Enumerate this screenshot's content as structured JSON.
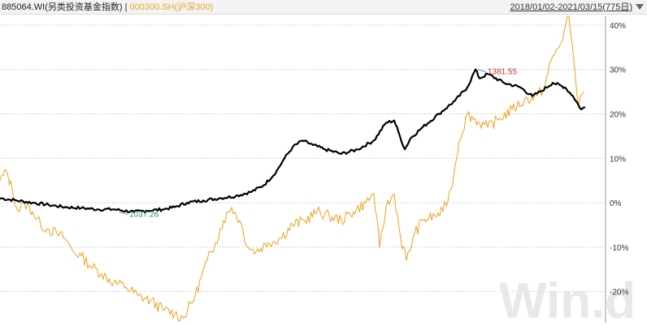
{
  "header": {
    "series1_label": "885064.WI(另类投资基金指数)",
    "separator": " | ",
    "series2_label": "000300.SH(沪深300)",
    "date_range": "2018/01/02-2021/03/15(775日)"
  },
  "watermark": "Win.d",
  "colors": {
    "series1": "#000000",
    "series2": "#f0a020",
    "max_label": "#c0392b",
    "min_label": "#2e8b57",
    "grid": "#bbbbbb"
  },
  "chart_data": {
    "type": "line",
    "x_start": "2018/01/02",
    "x_end": "2021/03/15",
    "trading_days": 775,
    "ylim": [
      -27,
      42
    ],
    "yticks": [
      40,
      30,
      20,
      10,
      0,
      -10,
      -20
    ],
    "ytick_labels": [
      "40%",
      "30%",
      "20%",
      "10%",
      "0%",
      "-10%",
      "-20%"
    ],
    "grid": true,
    "series": [
      {
        "key": "885064.WI",
        "points": [
          [
            0,
            1
          ],
          [
            20,
            0.5
          ],
          [
            40,
            0
          ],
          [
            60,
            -0.5
          ],
          [
            80,
            -1
          ],
          [
            100,
            -1.2
          ],
          [
            120,
            -1.5
          ],
          [
            140,
            -1.5
          ],
          [
            165,
            -2.1
          ],
          [
            180,
            -1.8
          ],
          [
            200,
            -1.5
          ],
          [
            215,
            -1
          ],
          [
            230,
            0
          ],
          [
            250,
            0.5
          ],
          [
            270,
            1
          ],
          [
            290,
            1.5
          ],
          [
            310,
            2.5
          ],
          [
            325,
            4
          ],
          [
            340,
            7
          ],
          [
            350,
            10
          ],
          [
            360,
            12.5
          ],
          [
            372,
            14
          ],
          [
            385,
            13
          ],
          [
            400,
            12
          ],
          [
            420,
            11
          ],
          [
            440,
            12
          ],
          [
            460,
            14
          ],
          [
            475,
            18
          ],
          [
            485,
            18.5
          ],
          [
            492,
            15
          ],
          [
            498,
            12
          ],
          [
            505,
            14.5
          ],
          [
            520,
            17
          ],
          [
            540,
            20
          ],
          [
            560,
            23
          ],
          [
            575,
            26
          ],
          [
            585,
            30
          ],
          [
            590,
            28
          ],
          [
            600,
            29
          ],
          [
            620,
            27
          ],
          [
            640,
            26
          ],
          [
            655,
            24
          ],
          [
            665,
            25
          ],
          [
            680,
            27
          ],
          [
            695,
            26
          ],
          [
            705,
            24
          ],
          [
            715,
            21
          ],
          [
            720,
            21.5
          ]
        ]
      },
      {
        "key": "000300.SH",
        "points": [
          [
            0,
            5
          ],
          [
            8,
            7
          ],
          [
            15,
            3
          ],
          [
            22,
            -2
          ],
          [
            30,
            0
          ],
          [
            40,
            -2
          ],
          [
            50,
            -5
          ],
          [
            60,
            -6
          ],
          [
            70,
            -7
          ],
          [
            80,
            -8
          ],
          [
            90,
            -11
          ],
          [
            100,
            -12
          ],
          [
            110,
            -14
          ],
          [
            125,
            -16
          ],
          [
            140,
            -18
          ],
          [
            155,
            -19
          ],
          [
            170,
            -21
          ],
          [
            185,
            -22
          ],
          [
            200,
            -24
          ],
          [
            215,
            -25
          ],
          [
            225,
            -26
          ],
          [
            240,
            -21
          ],
          [
            255,
            -13
          ],
          [
            265,
            -9
          ],
          [
            275,
            -4
          ],
          [
            285,
            -1
          ],
          [
            295,
            -4
          ],
          [
            305,
            -10
          ],
          [
            315,
            -11
          ],
          [
            330,
            -9
          ],
          [
            345,
            -8
          ],
          [
            360,
            -5
          ],
          [
            375,
            -4
          ],
          [
            390,
            -2
          ],
          [
            405,
            -3
          ],
          [
            420,
            -4
          ],
          [
            435,
            -2
          ],
          [
            450,
            0
          ],
          [
            460,
            2
          ],
          [
            467,
            -10
          ],
          [
            475,
            -1
          ],
          [
            485,
            2
          ],
          [
            493,
            -8
          ],
          [
            500,
            -13
          ],
          [
            510,
            -7
          ],
          [
            520,
            -4
          ],
          [
            535,
            -3
          ],
          [
            545,
            -2
          ],
          [
            555,
            3
          ],
          [
            565,
            14
          ],
          [
            575,
            20
          ],
          [
            590,
            18
          ],
          [
            600,
            17
          ],
          [
            615,
            19
          ],
          [
            630,
            21
          ],
          [
            645,
            23
          ],
          [
            660,
            24
          ],
          [
            670,
            26
          ],
          [
            678,
            32
          ],
          [
            690,
            36
          ],
          [
            700,
            42
          ],
          [
            706,
            32
          ],
          [
            712,
            22
          ],
          [
            718,
            25
          ]
        ]
      }
    ],
    "annotations": [
      {
        "kind": "max",
        "series": "885064.WI",
        "at": [
          586,
          30
        ],
        "text": "1381.55"
      },
      {
        "kind": "min",
        "series": "885064.WI",
        "at": [
          145,
          -2.1
        ],
        "text": "1037.26"
      }
    ]
  }
}
